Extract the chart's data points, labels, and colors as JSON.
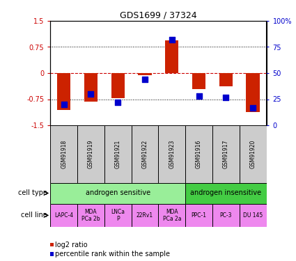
{
  "title": "GDS1699 / 37324",
  "samples": [
    "GSM91918",
    "GSM91919",
    "GSM91921",
    "GSM91922",
    "GSM91923",
    "GSM91916",
    "GSM91917",
    "GSM91920"
  ],
  "log2_ratios": [
    -1.05,
    -0.82,
    -0.72,
    -0.05,
    0.93,
    -0.45,
    -0.37,
    -1.12
  ],
  "percentile_ranks": [
    20,
    30,
    22,
    44,
    82,
    28,
    27,
    17
  ],
  "ylim": [
    -1.5,
    1.5
  ],
  "yticks_left": [
    -1.5,
    -0.75,
    0,
    0.75,
    1.5
  ],
  "yticks_right": [
    0,
    25,
    50,
    75,
    100
  ],
  "bar_color": "#cc2200",
  "dot_color": "#0000cc",
  "cell_type_groups": [
    {
      "label": "androgen sensitive",
      "start": 0,
      "end": 5,
      "color": "#99ee99"
    },
    {
      "label": "androgen insensitive",
      "start": 5,
      "end": 8,
      "color": "#44cc44"
    }
  ],
  "cell_lines": [
    "LAPC-4",
    "MDA\nPCa 2b",
    "LNCa\nP",
    "22Rv1",
    "MDA\nPCa 2a",
    "PPC-1",
    "PC-3",
    "DU 145"
  ],
  "cell_line_color": "#ee88ee",
  "sample_box_color": "#cccccc",
  "left_label_cell_type": "cell type",
  "left_label_cell_line": "cell line",
  "legend_log2": "log2 ratio",
  "legend_pct": "percentile rank within the sample",
  "hline_color": "#cc0000",
  "grid_color": "#000000"
}
